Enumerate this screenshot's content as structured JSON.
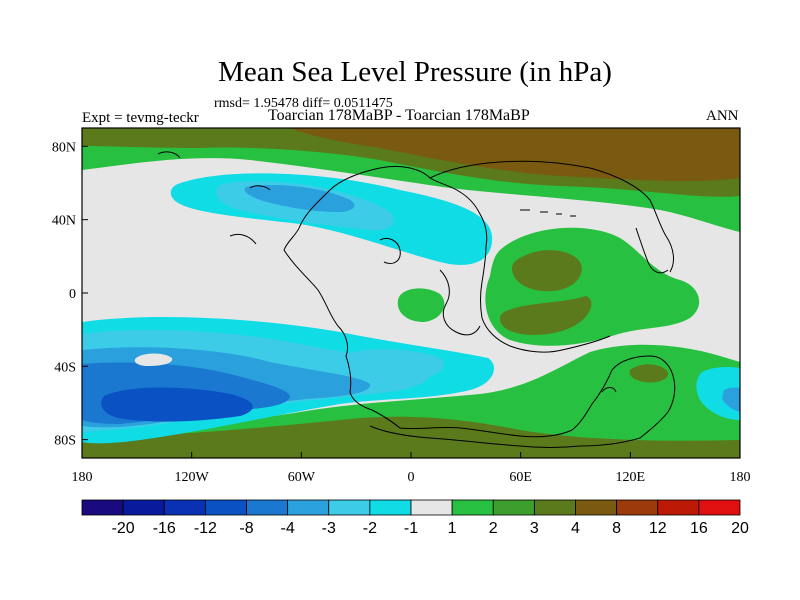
{
  "chart_data": {
    "type": "heatmap",
    "title": "Mean Sea Level Pressure (in hPa)",
    "stats": "rmsd= 1.95478 diff= 0.0511475",
    "left_label": "Expt = tevmg-teckr",
    "subtitle": "Toarcian 178MaBP - Toarcian 178MaBP",
    "right_label": "ANN",
    "x_ticks": [
      "180",
      "120W",
      "60W",
      "0",
      "60E",
      "120E",
      "180"
    ],
    "y_ticks": [
      "80N",
      "40N",
      "0",
      "40S",
      "80S"
    ],
    "xlim": [
      -180,
      180
    ],
    "ylim": [
      -90,
      90
    ],
    "colorbar": {
      "labels": [
        "-20",
        "-16",
        "-12",
        "-8",
        "-4",
        "-3",
        "-2",
        "-1",
        "1",
        "2",
        "3",
        "4",
        "8",
        "12",
        "16",
        "20"
      ],
      "colors": [
        "#1a0a80",
        "#0a1a9c",
        "#0a30b4",
        "#0a52c4",
        "#1a78d0",
        "#2aa0dc",
        "#3ccce8",
        "#10dce6",
        "#e6e6e6",
        "#28c040",
        "#3e9e2c",
        "#5a7a1c",
        "#7a5a10",
        "#9c3a0a",
        "#bc1a06",
        "#e01010"
      ]
    },
    "colors": {
      "background_level": "#e6e6e6",
      "coast": "#000000"
    }
  }
}
